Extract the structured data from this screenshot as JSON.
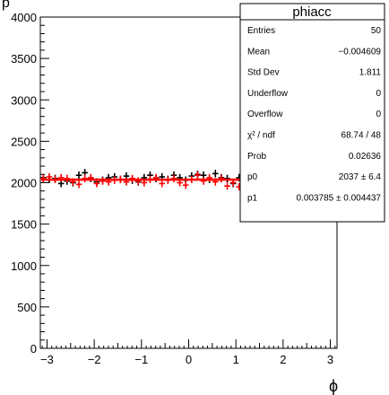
{
  "chart_data": {
    "type": "scatter",
    "title": "p",
    "xlabel": "ϕ",
    "ylabel": "",
    "xlim": [
      -3.1416,
      3.1416
    ],
    "ylim": [
      0,
      4000
    ],
    "x_ticks": [
      "−3",
      "−2",
      "−1",
      "0",
      "1",
      "2",
      "3"
    ],
    "y_ticks": [
      "0",
      "500",
      "1000",
      "1500",
      "2000",
      "2500",
      "3000",
      "3500",
      "4000"
    ],
    "x_tick_values": [
      -3,
      -2,
      -1,
      0,
      1,
      2,
      3
    ],
    "y_tick_values": [
      0,
      500,
      1000,
      1500,
      2000,
      2500,
      3000,
      3500,
      4000
    ],
    "nbins": 50,
    "series": [
      {
        "color": "#000000",
        "values": [
          2060,
          2040,
          2050,
          1990,
          2020,
          2000,
          2090,
          2120,
          2050,
          2010,
          2030,
          2060,
          2070,
          2040,
          2080,
          2030,
          2010,
          2060,
          2090,
          2050,
          2070,
          2040,
          2090,
          2060,
          2030,
          2080,
          2100,
          2090,
          2040,
          2110,
          2060,
          2050,
          1990,
          2060,
          1960,
          2010,
          1900,
          1990,
          1950,
          1960,
          1930,
          1970,
          1980,
          1940,
          1990,
          1960,
          1970,
          2000,
          1980,
          2010
        ]
      },
      {
        "color": "#ff0000",
        "values": [
          2050,
          2070,
          2040,
          2060,
          2050,
          2010,
          1980,
          2050,
          2060,
          1990,
          2020,
          2010,
          2030,
          2040,
          2010,
          2050,
          2020,
          2000,
          2040,
          2060,
          1990,
          2030,
          2050,
          2000,
          1970,
          2040,
          2090,
          2020,
          2060,
          2010,
          2050,
          1960,
          2000,
          1950,
          2020,
          2050,
          2000,
          2110,
          2060,
          2090,
          2060,
          2070,
          2050,
          2050,
          2040,
          2090,
          2060,
          2110,
          2140,
          2120
        ]
      }
    ],
    "fit": {
      "color": "#ff0000",
      "y": 2037
    },
    "stats": {
      "title": "phiacc",
      "rows": [
        {
          "label": "Entries",
          "value": "50"
        },
        {
          "label": "Mean",
          "value": "−0.004609"
        },
        {
          "label": "Std Dev",
          "value": "1.811"
        },
        {
          "label": "Underflow",
          "value": "0"
        },
        {
          "label": "Overflow",
          "value": "0"
        },
        {
          "label": "χ² / ndf",
          "value": "68.74 / 48"
        },
        {
          "label": "Prob",
          "value": "0.02636"
        },
        {
          "label": "p0",
          "value": "2037 ± 6.4"
        },
        {
          "label": "p1",
          "value": "0.003785 ± 0.004437"
        }
      ]
    }
  }
}
